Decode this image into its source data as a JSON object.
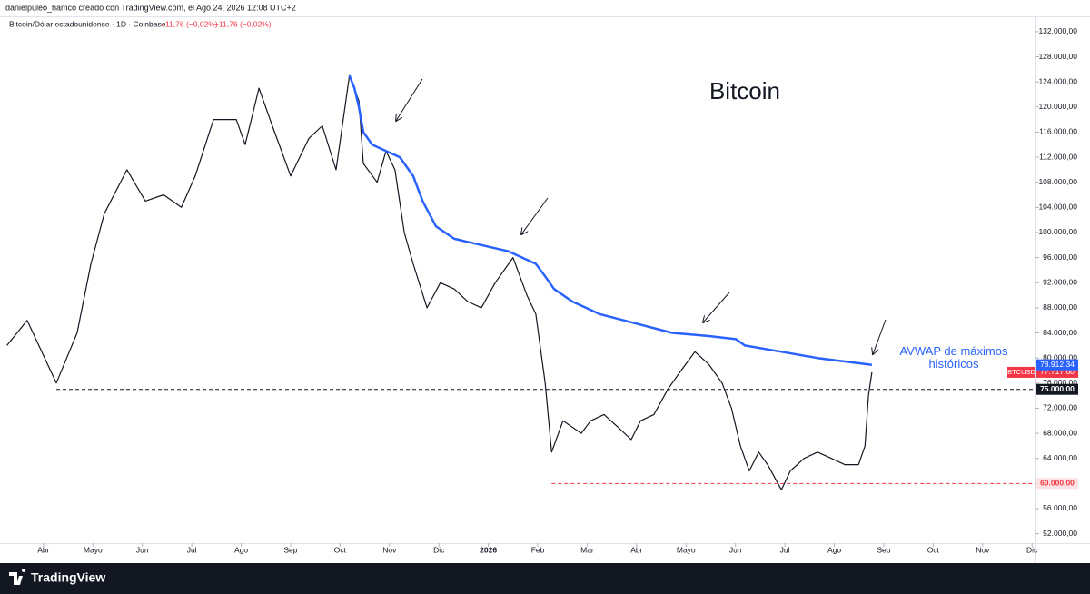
{
  "chart_data": {
    "type": "line",
    "header": "danielpuleo_hamco creado con TradingView.com, el Ago 24, 2026 12:08 UTC+2",
    "legend_title": "Bitcoin/Dólar estadounidense · 1D · Coinbase",
    "legend_changes": [
      "−11,76 (−0,02%)",
      "−11,76 (−0,02%)"
    ],
    "title": "Bitcoin",
    "brand": "TradingView",
    "grid": false,
    "xlim": [
      -0.88,
      20.07
    ],
    "xticks": [
      {
        "value": 0,
        "label": "Abr"
      },
      {
        "value": 1,
        "label": "Mayo"
      },
      {
        "value": 2,
        "label": "Jun"
      },
      {
        "value": 3,
        "label": "Jul"
      },
      {
        "value": 4,
        "label": "Ago"
      },
      {
        "value": 5,
        "label": "Sep"
      },
      {
        "value": 6,
        "label": "Oct"
      },
      {
        "value": 7,
        "label": "Nov"
      },
      {
        "value": 8,
        "label": "Dic"
      },
      {
        "value": 9,
        "label": "2026"
      },
      {
        "value": 10,
        "label": "Feb"
      },
      {
        "value": 11,
        "label": "Mar"
      },
      {
        "value": 12,
        "label": "Abr"
      },
      {
        "value": 13,
        "label": "Mayo"
      },
      {
        "value": 14,
        "label": "Jun"
      },
      {
        "value": 15,
        "label": "Jul"
      },
      {
        "value": 16,
        "label": "Ago"
      },
      {
        "value": 17,
        "label": "Sep"
      },
      {
        "value": 18,
        "label": "Oct"
      },
      {
        "value": 19,
        "label": "Nov"
      },
      {
        "value": 20,
        "label": "Dic"
      }
    ],
    "ylim": [
      50500,
      135600
    ],
    "yticks": [
      {
        "value": 52000,
        "label": "52.000,00"
      },
      {
        "value": 56000,
        "label": "56.000,00"
      },
      {
        "value": 60000,
        "label": "60.000,00"
      },
      {
        "value": 64000,
        "label": "64.000,00"
      },
      {
        "value": 68000,
        "label": "68.000,00"
      },
      {
        "value": 72000,
        "label": "72.000,00"
      },
      {
        "value": 76000,
        "label": "76.000,00"
      },
      {
        "value": 80000,
        "label": "80.000,00"
      },
      {
        "value": 84000,
        "label": "84.000,00"
      },
      {
        "value": 88000,
        "label": "88.000,00"
      },
      {
        "value": 92000,
        "label": "92.000,00"
      },
      {
        "value": 96000,
        "label": "96.000,00"
      },
      {
        "value": 100000,
        "label": "100.000,00"
      },
      {
        "value": 104000,
        "label": "104.000,00"
      },
      {
        "value": 108000,
        "label": "108.000,00"
      },
      {
        "value": 112000,
        "label": "112.000,00"
      },
      {
        "value": 116000,
        "label": "116.000,00"
      },
      {
        "value": 120000,
        "label": "120.000,00"
      },
      {
        "value": 124000,
        "label": "124.000,00"
      },
      {
        "value": 128000,
        "label": "128.000,00"
      },
      {
        "value": 132000,
        "label": "132.000,00"
      }
    ],
    "series": [
      {
        "name": "BTCUSD",
        "color": "#f23645",
        "line_color": "#131722",
        "x": [
          -0.74,
          -0.33,
          0.26,
          0.68,
          0.96,
          1.23,
          1.69,
          2.06,
          2.43,
          2.79,
          3.07,
          3.44,
          3.9,
          4.08,
          4.36,
          4.63,
          5.0,
          5.37,
          5.64,
          5.92,
          6.19,
          6.38,
          6.47,
          6.75,
          6.93,
          7.11,
          7.3,
          7.48,
          7.76,
          8.03,
          8.31,
          8.58,
          8.86,
          9.14,
          9.5,
          9.78,
          9.96,
          10.15,
          10.28,
          10.51,
          10.88,
          11.07,
          11.34,
          11.62,
          11.89,
          12.08,
          12.35,
          12.63,
          12.9,
          13.18,
          13.46,
          13.73,
          13.92,
          14.1,
          14.28,
          14.47,
          14.65,
          14.93,
          15.11,
          15.39,
          15.66,
          15.94,
          16.21,
          16.49,
          16.62,
          16.69,
          16.76
        ],
        "values": [
          82000,
          86000,
          76000,
          84000,
          95000,
          103000,
          110000,
          105000,
          106000,
          104000,
          109000,
          118000,
          118000,
          114000,
          123000,
          117000,
          109000,
          115000,
          117000,
          110000,
          125000,
          121000,
          111000,
          108000,
          113000,
          110000,
          100000,
          95000,
          88000,
          92000,
          91000,
          89000,
          88000,
          92000,
          96000,
          90000,
          87000,
          76000,
          65000,
          70000,
          68000,
          70000,
          71000,
          69000,
          67000,
          70000,
          71000,
          75000,
          78000,
          81000,
          79000,
          76000,
          72000,
          66000,
          62000,
          65000,
          63000,
          59000,
          62000,
          64000,
          65000,
          64000,
          63000,
          63000,
          66000,
          74000,
          77717.6
        ],
        "value_labels": [
          null,
          null,
          null,
          null,
          null,
          null,
          null,
          null,
          null,
          null,
          null,
          null,
          null,
          null,
          null,
          null,
          null,
          null,
          null,
          null,
          null,
          null,
          null,
          null,
          null,
          null,
          null,
          null,
          null,
          null,
          null,
          null,
          null,
          null,
          null,
          null,
          null,
          null,
          null,
          null,
          null,
          null,
          null,
          null,
          null,
          null,
          null,
          null,
          null,
          null,
          null,
          null,
          null,
          null,
          null,
          null,
          null,
          null,
          null,
          null,
          null,
          null,
          null,
          null,
          null,
          null,
          "77.717,60"
        ]
      },
      {
        "name": "AVWAP de máximos históricos",
        "color": "#2962ff",
        "x": [
          6.19,
          6.29,
          6.38,
          6.47,
          6.65,
          6.93,
          7.21,
          7.48,
          7.67,
          7.94,
          8.31,
          8.86,
          9.41,
          9.96,
          10.15,
          10.33,
          10.7,
          11.25,
          11.99,
          12.72,
          13.46,
          14.01,
          14.19,
          14.93,
          15.66,
          16.76
        ],
        "values": [
          125000,
          123000,
          120000,
          116000,
          114000,
          113000,
          112000,
          109000,
          105000,
          101000,
          99000,
          98000,
          97000,
          95000,
          93000,
          91000,
          89000,
          87000,
          85500,
          84000,
          83500,
          83000,
          82000,
          81000,
          80000,
          78912.34
        ],
        "value_labels": [
          null,
          null,
          null,
          null,
          null,
          null,
          null,
          null,
          null,
          null,
          null,
          null,
          null,
          null,
          null,
          null,
          null,
          null,
          null,
          null,
          null,
          null,
          null,
          null,
          null,
          "78.912,34"
        ]
      }
    ],
    "levels": [
      {
        "value": 75000,
        "label": "75.000,00",
        "from": 0.26,
        "color": "#131722"
      },
      {
        "value": 60000,
        "label": "60.000,00",
        "from": 10.28,
        "color": "#f23645"
      }
    ]
  }
}
